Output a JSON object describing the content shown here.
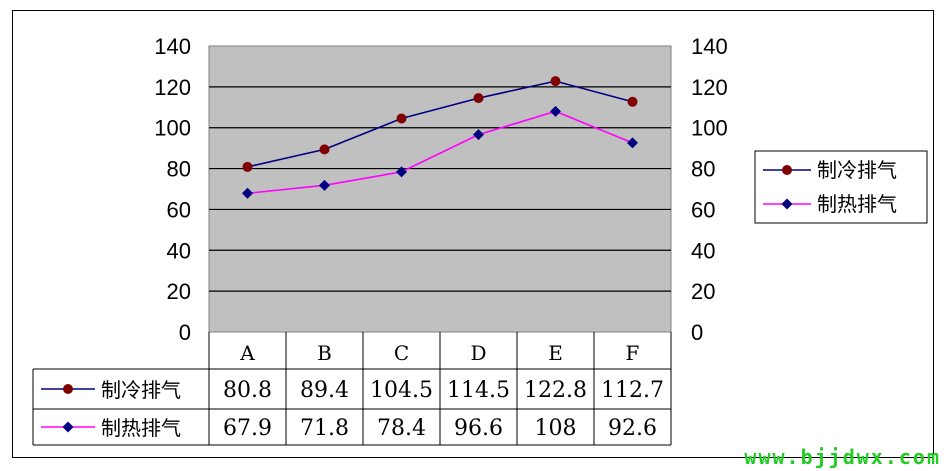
{
  "chart_data": {
    "type": "line",
    "title": "",
    "xlabel": "",
    "ylabel": "",
    "categories": [
      "A",
      "B",
      "C",
      "D",
      "E",
      "F"
    ],
    "ylim": [
      0,
      140
    ],
    "y_ticks": [
      "0",
      "20",
      "40",
      "60",
      "80",
      "100",
      "120",
      "140"
    ],
    "secondary_y_axis": true,
    "grid": true,
    "legend_position": "right",
    "plot_background": "#c0c0c0",
    "data_table": true,
    "series": [
      {
        "name": "制冷排气",
        "values": [
          80.8,
          89.4,
          104.5,
          114.5,
          122.8,
          112.7
        ],
        "labels": [
          "80.8",
          "89.4",
          "104.5",
          "114.5",
          "122.8",
          "112.7"
        ],
        "line_color": "#000080",
        "marker": "circle",
        "marker_color": "#800000"
      },
      {
        "name": "制热排气",
        "values": [
          67.9,
          71.8,
          78.4,
          96.6,
          108,
          92.6
        ],
        "labels": [
          "67.9",
          "71.8",
          "78.4",
          "96.6",
          "108",
          "92.6"
        ],
        "line_color": "#ff00ff",
        "marker": "diamond",
        "marker_color": "#000080"
      }
    ]
  },
  "watermark": "www.bjjdwx.com"
}
